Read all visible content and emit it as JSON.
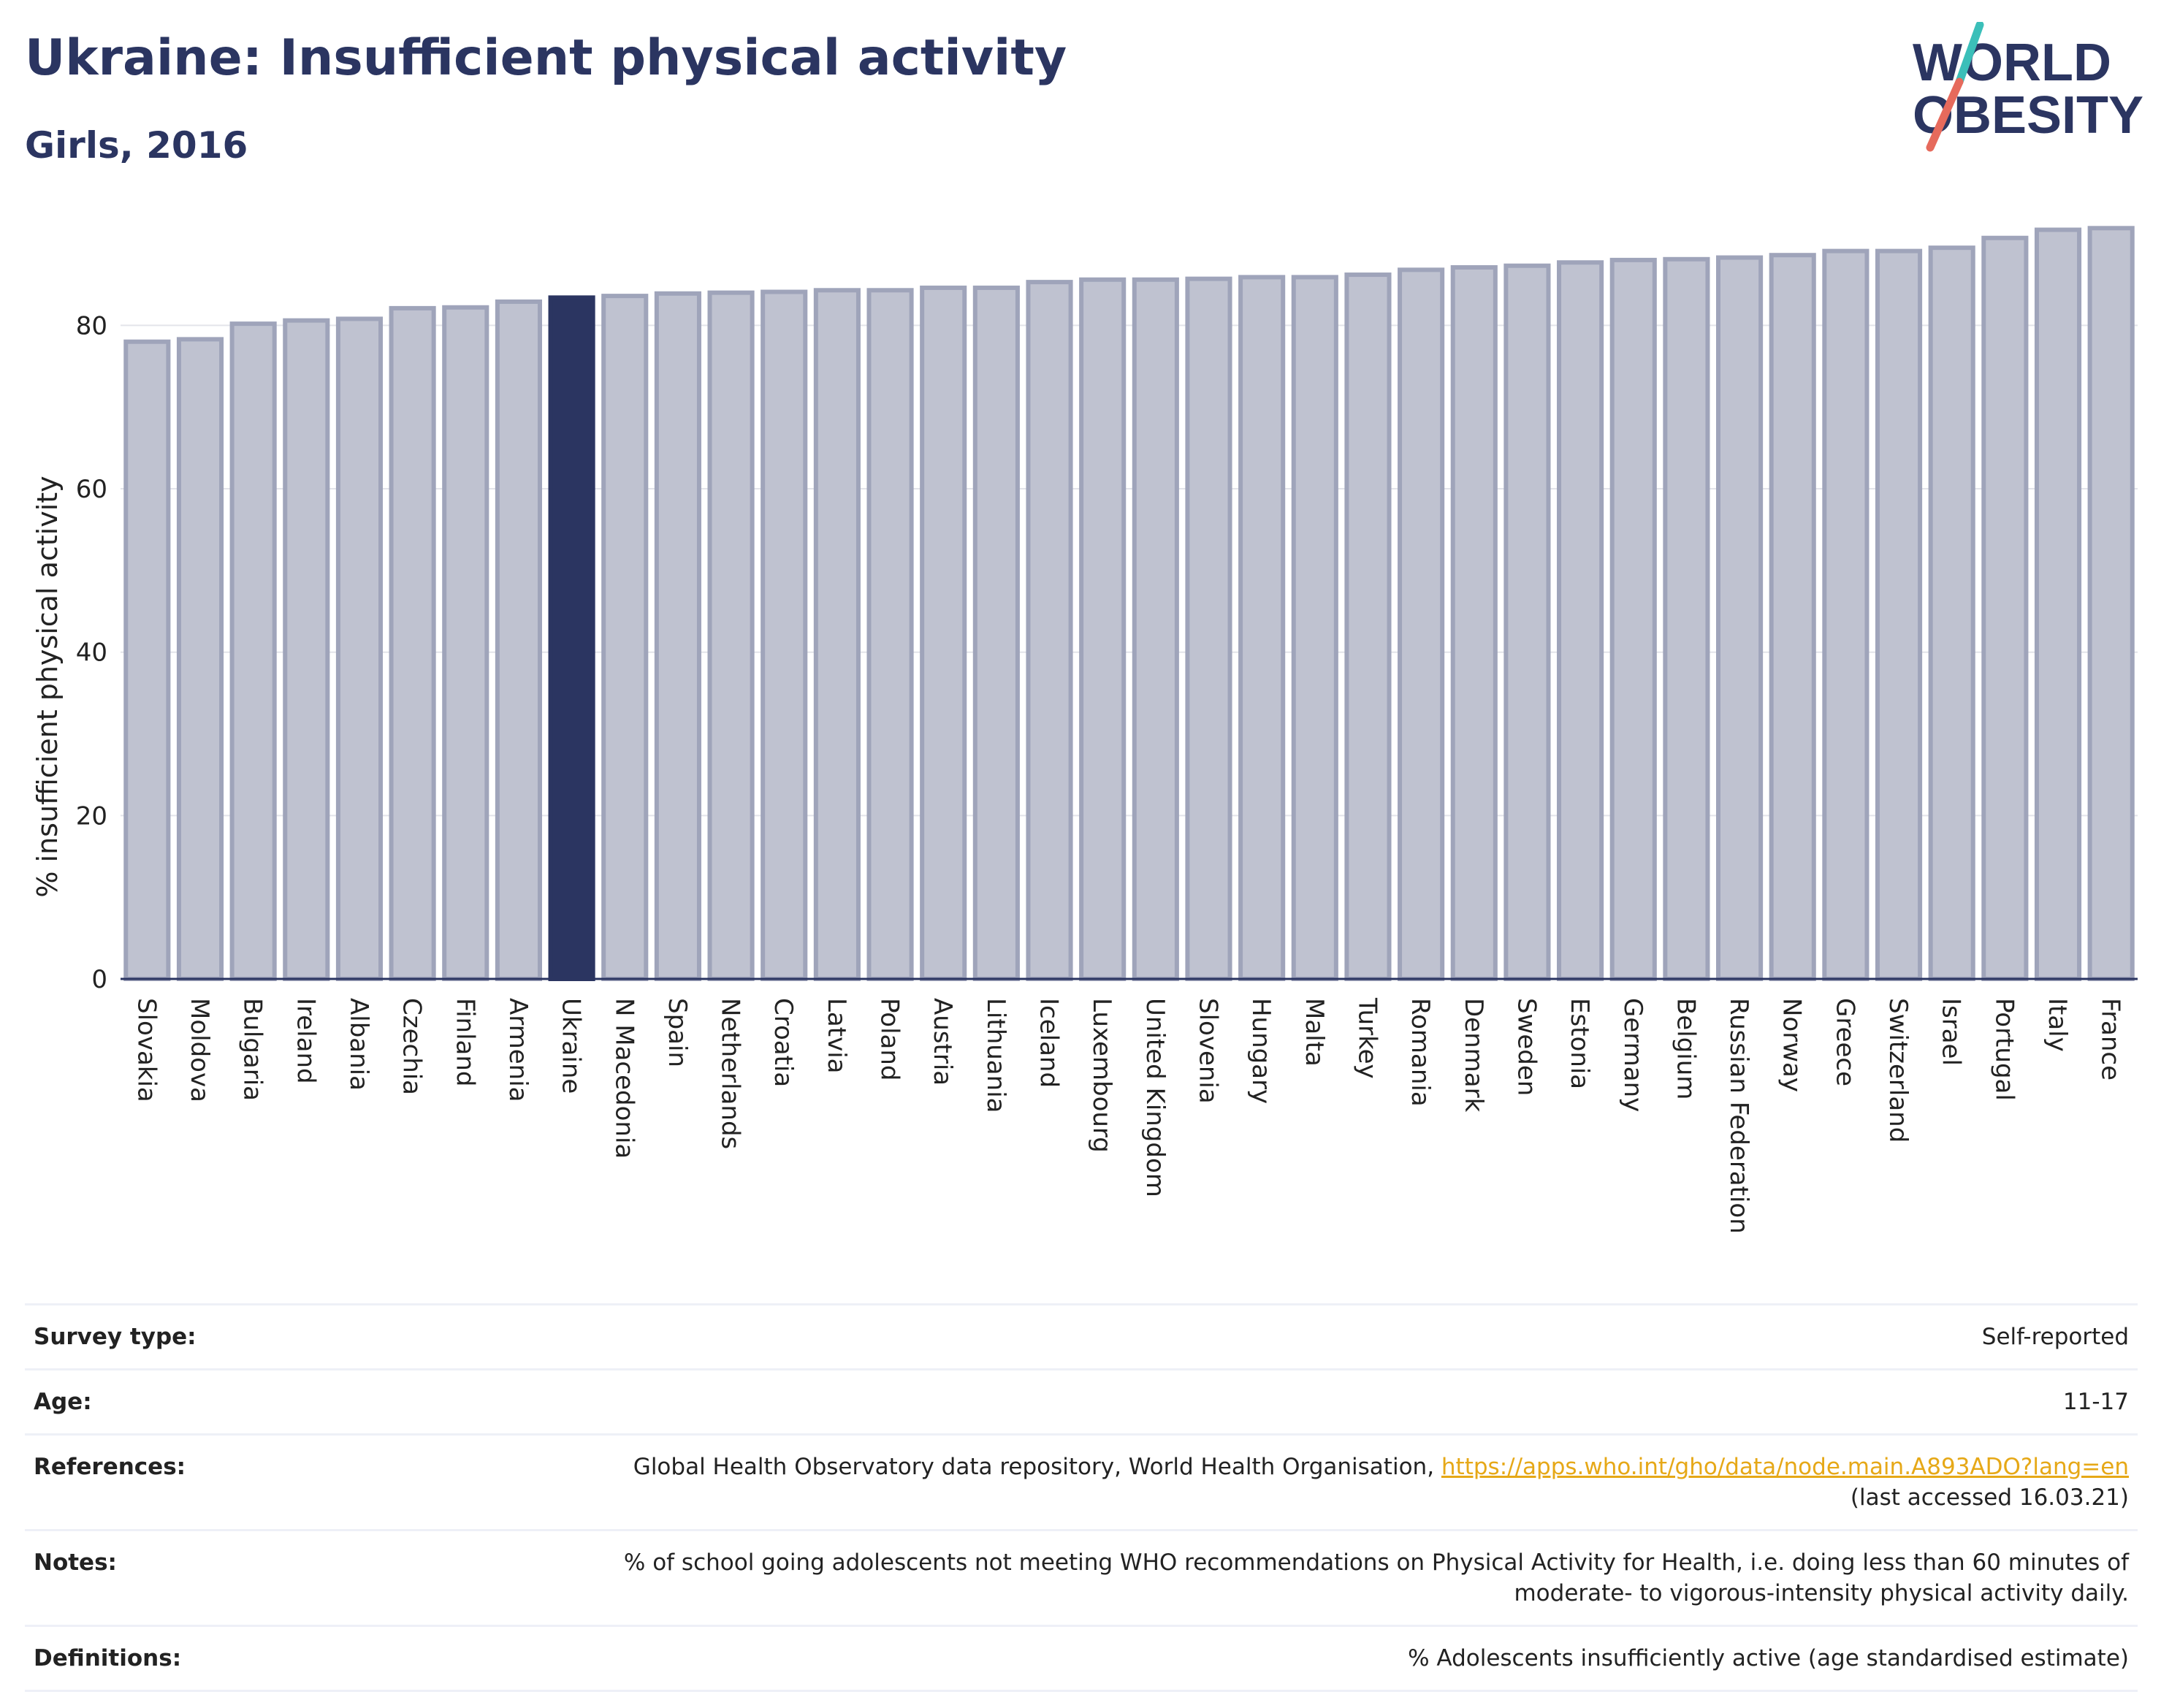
{
  "header": {
    "title": "Ukraine: Insufficient physical activity",
    "subtitle": "Girls, 2016"
  },
  "logo": {
    "line1": "WORLD",
    "line2": "OBESITY",
    "text_color": "#2b3561",
    "slash_color_top": "#3bbfb9",
    "slash_color_bottom": "#e66a5c"
  },
  "chart_data": {
    "type": "bar",
    "ylabel": "% insufficient physical activity",
    "xlabel": "",
    "ylim": [
      0,
      93
    ],
    "yticks": [
      0,
      20,
      40,
      60,
      80
    ],
    "grid": true,
    "highlight_category": "Ukraine",
    "colors": {
      "bar": "#bfc2d0",
      "bar_edge": "#9fa4ba",
      "highlight": "#2b3561"
    },
    "categories": [
      "Slovakia",
      "Moldova",
      "Bulgaria",
      "Ireland",
      "Albania",
      "Czechia",
      "Finland",
      "Armenia",
      "Ukraine",
      "N Macedonia",
      "Spain",
      "Netherlands",
      "Croatia",
      "Latvia",
      "Poland",
      "Austria",
      "Lithuania",
      "Iceland",
      "Luxembourg",
      "United Kingdom",
      "Slovenia",
      "Hungary",
      "Malta",
      "Turkey",
      "Romania",
      "Denmark",
      "Sweden",
      "Estonia",
      "Germany",
      "Belgium",
      "Russian Federation",
      "Norway",
      "Greece",
      "Switzerland",
      "Israel",
      "Portugal",
      "Italy",
      "France"
    ],
    "values": [
      78.0,
      78.3,
      80.2,
      80.6,
      80.8,
      82.1,
      82.2,
      82.9,
      83.4,
      83.6,
      83.9,
      84.0,
      84.1,
      84.3,
      84.3,
      84.6,
      84.6,
      85.3,
      85.6,
      85.6,
      85.7,
      85.9,
      85.9,
      86.2,
      86.8,
      87.1,
      87.3,
      87.7,
      88.0,
      88.1,
      88.3,
      88.6,
      89.1,
      89.1,
      89.5,
      90.7,
      91.7,
      91.9
    ]
  },
  "info": {
    "survey_type": {
      "label": "Survey type:",
      "value": "Self-reported"
    },
    "age": {
      "label": "Age:",
      "value": "11-17"
    },
    "references": {
      "label": "References:",
      "text": "Global Health Observatory data repository, World Health Organisation,",
      "link": "https://apps.who.int/gho/data/node.main.A893ADO?lang=en",
      "accessed": "(last accessed 16.03.21)"
    },
    "notes": {
      "label": "Notes:",
      "line1": "% of school going adolescents not meeting WHO recommendations on Physical Activity for Health, i.e. doing less than 60 minutes of",
      "line2": "moderate- to vigorous-intensity physical activity daily."
    },
    "definitions": {
      "label": "Definitions:",
      "value": "% Adolescents insufficiently active (age standardised estimate)"
    }
  }
}
